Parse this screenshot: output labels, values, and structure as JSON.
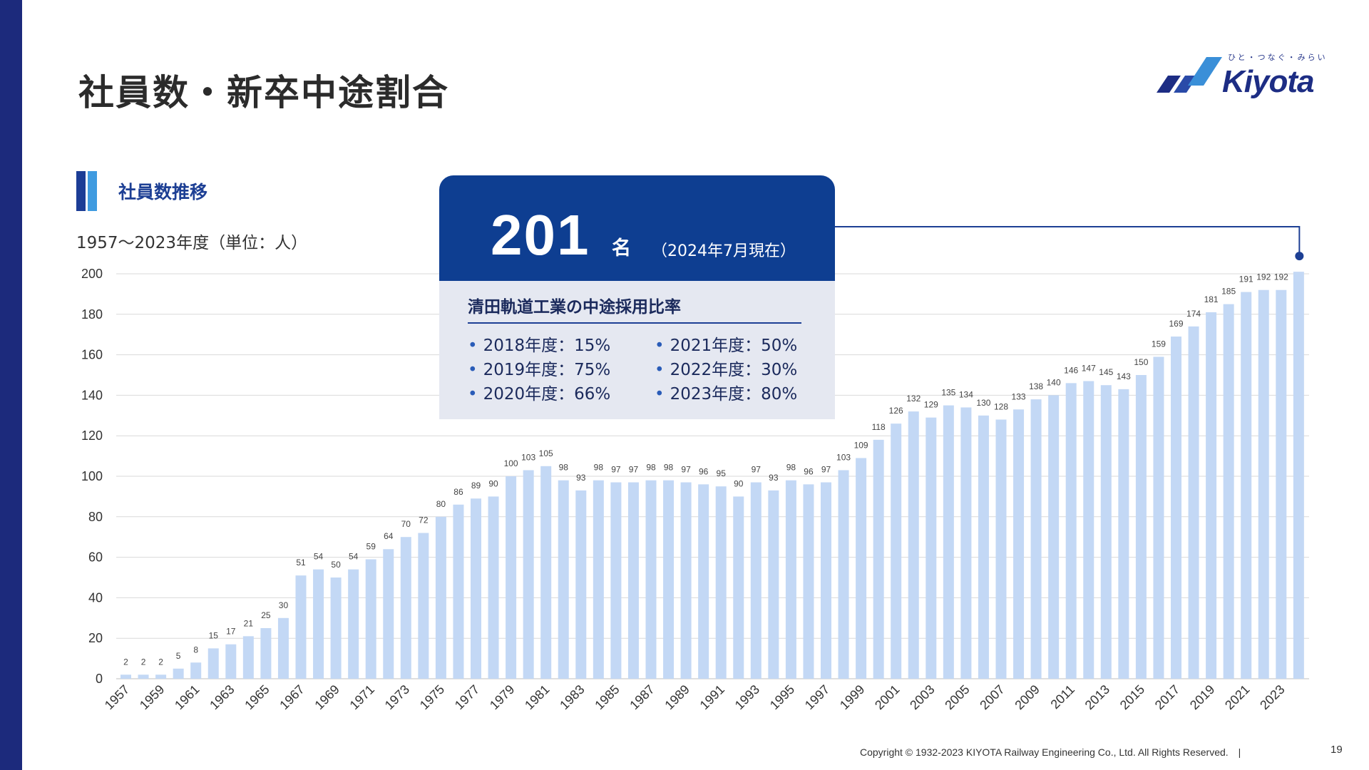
{
  "header": {
    "title": "社員数・新卒中途割合",
    "logo_tagline": "ひと・つなぐ・みらい",
    "logo_word": "Kiyota"
  },
  "section": {
    "title": "社員数推移",
    "range_label": "1957〜2023年度（単位：人）"
  },
  "callout": {
    "number": "201",
    "unit": "名",
    "note": "（2024年7月現在）",
    "subtitle": "清田軌道工業の中途採用比率",
    "ratios_left": [
      "2018年度：15%",
      "2019年度：75%",
      "2020年度：66%"
    ],
    "ratios_right": [
      "2021年度：50%",
      "2022年度：30%",
      "2023年度：80%"
    ]
  },
  "chart_data": {
    "type": "bar",
    "categories": [
      1957,
      1958,
      1959,
      1960,
      1961,
      1962,
      1963,
      1964,
      1965,
      1966,
      1967,
      1968,
      1969,
      1970,
      1971,
      1972,
      1973,
      1974,
      1975,
      1976,
      1977,
      1978,
      1979,
      1980,
      1981,
      1982,
      1983,
      1984,
      1985,
      1986,
      1987,
      1988,
      1989,
      1990,
      1991,
      1992,
      1993,
      1994,
      1995,
      1996,
      1997,
      1998,
      1999,
      2000,
      2001,
      2002,
      2003,
      2004,
      2005,
      2006,
      2007,
      2008,
      2009,
      2010,
      2011,
      2012,
      2013,
      2014,
      2015,
      2016,
      2017,
      2018,
      2019,
      2020,
      2021,
      2022,
      2023,
      2024
    ],
    "values": [
      2,
      2,
      2,
      5,
      8,
      15,
      17,
      21,
      25,
      30,
      51,
      54,
      50,
      54,
      59,
      64,
      70,
      72,
      80,
      86,
      89,
      90,
      100,
      103,
      105,
      98,
      93,
      98,
      97,
      97,
      98,
      98,
      97,
      96,
      95,
      90,
      97,
      93,
      98,
      96,
      97,
      103,
      109,
      118,
      126,
      132,
      129,
      135,
      134,
      130,
      128,
      133,
      138,
      140,
      146,
      147,
      145,
      143,
      150,
      159,
      169,
      174,
      181,
      185,
      191,
      192,
      192,
      201
    ],
    "labeled_count": 67,
    "x_tick_labels": [
      "1957",
      "1959",
      "1961",
      "1963",
      "1965",
      "1967",
      "1969",
      "1971",
      "1973",
      "1975",
      "1977",
      "1979",
      "1981",
      "1983",
      "1985",
      "1987",
      "1989",
      "1991",
      "1993",
      "1995",
      "1997",
      "1999",
      "2001",
      "2003",
      "2005",
      "2007",
      "2009",
      "2011",
      "2013",
      "2015",
      "2017",
      "2019",
      "2021",
      "2023"
    ],
    "y_ticks": [
      0,
      20,
      40,
      60,
      80,
      100,
      120,
      140,
      160,
      180,
      200
    ],
    "ylim": [
      0,
      200
    ],
    "grid": true,
    "bar_color": "#c3d8f5",
    "leader_color": "#1d3f94"
  },
  "footer": {
    "copyright": "Copyright © 1932-2023 KIYOTA Railway Engineering Co., Ltd. All Rights Reserved.　|",
    "page_number": "19"
  }
}
